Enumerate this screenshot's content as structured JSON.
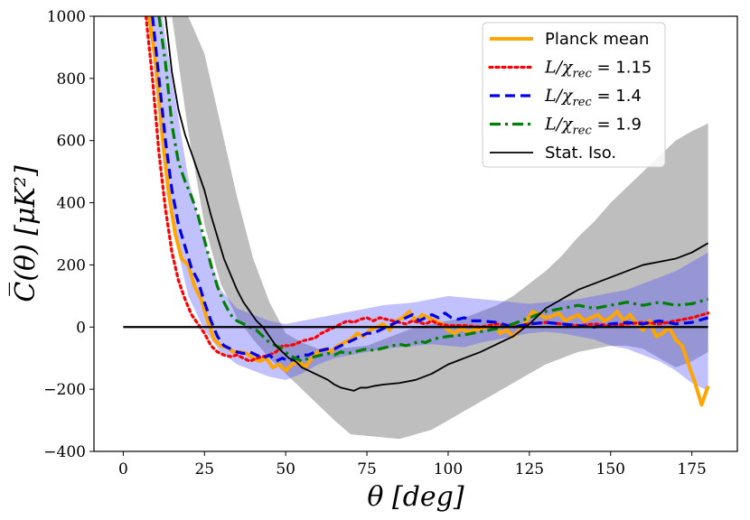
{
  "chart_data": {
    "type": "line",
    "title": "",
    "xlabel": "θ [deg]",
    "ylabel": "C̅(θ) [μK²]",
    "xlim": [
      -9,
      189
    ],
    "ylim": [
      -400,
      1000
    ],
    "x_ticks": [
      "0",
      "25",
      "50",
      "75",
      "100",
      "125",
      "150",
      "175"
    ],
    "x_tick_values": [
      0,
      25,
      50,
      75,
      100,
      125,
      150,
      175
    ],
    "y_ticks": [
      "−400",
      "−200",
      "0",
      "200",
      "400",
      "600",
      "800",
      "1000"
    ],
    "y_tick_values": [
      -400,
      -200,
      0,
      200,
      400,
      600,
      800,
      1000
    ],
    "legend_position": "top-right",
    "bands": [
      {
        "name": "Stat. Iso. band",
        "color": "#bebebe",
        "x": [
          10,
          15,
          20,
          25,
          30,
          35,
          40,
          45,
          50,
          55,
          60,
          65,
          70,
          75,
          80,
          85,
          90,
          95,
          100,
          105,
          110,
          115,
          120,
          125,
          130,
          135,
          140,
          145,
          150,
          155,
          160,
          165,
          170,
          175,
          180
        ],
        "lower": [
          1000,
          1000,
          630,
          330,
          140,
          30,
          -40,
          -100,
          -150,
          -200,
          -250,
          -300,
          -345,
          -350,
          -355,
          -360,
          -345,
          -330,
          -300,
          -270,
          -240,
          -210,
          -180,
          -150,
          -120,
          -100,
          -80,
          -70,
          -60,
          -60,
          -70,
          -100,
          -130,
          -110,
          -80
        ],
        "upper": [
          1000,
          1000,
          1000,
          880,
          650,
          420,
          220,
          80,
          -20,
          -50,
          -70,
          -70,
          -65,
          -60,
          -40,
          -20,
          0,
          10,
          20,
          30,
          50,
          70,
          100,
          140,
          180,
          230,
          290,
          340,
          400,
          450,
          500,
          550,
          600,
          630,
          655
        ]
      },
      {
        "name": "L/χrec = 1.4 band",
        "color": "#4d4dff",
        "opacity": 0.35,
        "x": [
          8,
          12,
          15,
          20,
          25,
          30,
          35,
          40,
          45,
          50,
          55,
          60,
          65,
          70,
          75,
          80,
          85,
          90,
          95,
          100,
          105,
          110,
          115,
          120,
          125,
          130,
          135,
          140,
          145,
          150,
          155,
          160,
          165,
          170,
          175,
          180
        ],
        "lower": [
          1000,
          560,
          330,
          100,
          -10,
          -80,
          -120,
          -140,
          -160,
          -170,
          -150,
          -120,
          -100,
          -90,
          -80,
          -70,
          -65,
          -60,
          -55,
          -60,
          -65,
          -50,
          -40,
          -30,
          -20,
          -15,
          -20,
          -30,
          -40,
          -60,
          -70,
          -90,
          -110,
          -140,
          -180,
          -205
        ],
        "upper": [
          1000,
          1000,
          800,
          480,
          270,
          120,
          60,
          40,
          20,
          10,
          20,
          30,
          40,
          50,
          60,
          70,
          75,
          80,
          90,
          100,
          95,
          90,
          85,
          80,
          75,
          80,
          85,
          90,
          100,
          110,
          120,
          140,
          160,
          180,
          210,
          240
        ]
      }
    ],
    "series": [
      {
        "name": "Planck mean",
        "label_text": "Planck mean",
        "color": "#ffa500",
        "style": "solid",
        "width": 4,
        "x": [
          8,
          10,
          12,
          14,
          16,
          18,
          20,
          22,
          24,
          26,
          28,
          30,
          32,
          34,
          36,
          38,
          40,
          42,
          44,
          46,
          48,
          50,
          52,
          54,
          56,
          58,
          60,
          62,
          64,
          66,
          68,
          70,
          72,
          74,
          76,
          78,
          80,
          82,
          84,
          86,
          88,
          90,
          92,
          94,
          96,
          98,
          100,
          102,
          104,
          106,
          108,
          110,
          112,
          114,
          116,
          118,
          120,
          122,
          124,
          126,
          128,
          130,
          132,
          134,
          136,
          138,
          140,
          142,
          144,
          146,
          148,
          150,
          152,
          154,
          156,
          158,
          160,
          162,
          164,
          166,
          168,
          170,
          172,
          174,
          176,
          178,
          180
        ],
        "y": [
          1000,
          850,
          620,
          430,
          300,
          220,
          200,
          130,
          90,
          20,
          -40,
          -60,
          -65,
          -80,
          -80,
          -85,
          -100,
          -110,
          -100,
          -130,
          -120,
          -140,
          -120,
          -110,
          -130,
          -100,
          -80,
          -70,
          -80,
          -60,
          -50,
          -40,
          -20,
          -30,
          -10,
          0,
          10,
          -10,
          20,
          30,
          50,
          20,
          40,
          30,
          20,
          10,
          -10,
          -20,
          -5,
          -15,
          -10,
          -5,
          0,
          10,
          -20,
          -10,
          -30,
          -10,
          20,
          50,
          40,
          30,
          35,
          45,
          20,
          30,
          40,
          20,
          30,
          40,
          20,
          30,
          50,
          20,
          40,
          10,
          -10,
          20,
          -30,
          -20,
          0,
          -40,
          -60,
          -120,
          -180,
          -250,
          -190
        ]
      },
      {
        "name": "L/χrec = 1.15",
        "label_text": "= 1.15",
        "color": "#ff0000",
        "style": "dotted",
        "width": 3.2,
        "x": [
          7,
          9,
          11,
          13,
          15,
          17,
          19,
          21,
          23,
          25,
          27,
          29,
          31,
          33,
          35,
          37,
          39,
          41,
          43,
          45,
          47,
          49,
          51,
          53,
          55,
          57,
          59,
          61,
          63,
          65,
          67,
          69,
          71,
          73,
          75,
          77,
          79,
          81,
          83,
          85,
          87,
          89,
          91,
          93,
          95,
          97,
          100,
          105,
          110,
          115,
          120,
          125,
          130,
          135,
          140,
          145,
          150,
          155,
          160,
          165,
          170,
          175,
          180
        ],
        "y": [
          1000,
          800,
          560,
          380,
          240,
          150,
          90,
          40,
          10,
          -20,
          -60,
          -80,
          -90,
          -95,
          -90,
          -100,
          -110,
          -100,
          -95,
          -90,
          -80,
          -60,
          -60,
          -55,
          -45,
          -40,
          -35,
          -20,
          -10,
          0,
          10,
          20,
          15,
          25,
          30,
          20,
          30,
          25,
          20,
          15,
          10,
          20,
          15,
          10,
          20,
          10,
          5,
          5,
          0,
          10,
          0,
          10,
          15,
          10,
          5,
          10,
          5,
          10,
          15,
          10,
          20,
          30,
          45
        ]
      },
      {
        "name": "L/χrec = 1.4",
        "label_text": "= 1.4",
        "color": "#0000ee",
        "style": "dashed",
        "width": 3.2,
        "x": [
          9,
          11,
          13,
          15,
          17,
          19,
          21,
          23,
          25,
          27,
          29,
          31,
          33,
          35,
          37,
          39,
          41,
          43,
          45,
          47,
          49,
          51,
          53,
          55,
          57,
          59,
          61,
          63,
          65,
          67,
          69,
          71,
          73,
          75,
          77,
          79,
          81,
          83,
          85,
          87,
          89,
          91,
          93,
          95,
          97,
          99,
          101,
          103,
          105,
          107,
          110,
          115,
          120,
          125,
          130,
          135,
          140,
          145,
          150,
          155,
          160,
          165,
          170,
          175,
          180
        ],
        "y": [
          1000,
          800,
          600,
          440,
          330,
          260,
          190,
          150,
          80,
          20,
          -30,
          -60,
          -70,
          -80,
          -85,
          -80,
          -90,
          -100,
          -90,
          -110,
          -100,
          -110,
          -100,
          -90,
          -90,
          -80,
          -75,
          -70,
          -70,
          -60,
          -50,
          -40,
          -30,
          -20,
          -20,
          -10,
          0,
          10,
          20,
          30,
          40,
          20,
          30,
          40,
          30,
          45,
          30,
          25,
          30,
          20,
          20,
          15,
          0,
          10,
          15,
          10,
          5,
          0,
          10,
          15,
          10,
          20,
          10,
          15,
          30
        ]
      },
      {
        "name": "L/χrec = 1.9",
        "label_text": "= 1.9",
        "color": "#008000",
        "style": "dashdot",
        "width": 3.2,
        "x": [
          11,
          13,
          15,
          17,
          19,
          21,
          23,
          25,
          27,
          29,
          31,
          33,
          35,
          37,
          39,
          41,
          43,
          45,
          47,
          49,
          51,
          53,
          55,
          57,
          59,
          61,
          63,
          65,
          67,
          69,
          71,
          73,
          75,
          77,
          79,
          81,
          83,
          85,
          87,
          89,
          91,
          93,
          95,
          97,
          100,
          105,
          110,
          115,
          120,
          125,
          130,
          135,
          140,
          145,
          150,
          155,
          160,
          165,
          170,
          175,
          180
        ],
        "y": [
          1000,
          850,
          650,
          530,
          470,
          420,
          360,
          280,
          200,
          130,
          80,
          40,
          20,
          10,
          0,
          -10,
          -30,
          -50,
          -60,
          -70,
          -90,
          -100,
          -110,
          -100,
          -95,
          -90,
          -85,
          -90,
          -80,
          -85,
          -80,
          -75,
          -70,
          -75,
          -70,
          -65,
          -60,
          -55,
          -60,
          -55,
          -45,
          -50,
          -40,
          -35,
          -30,
          -25,
          -15,
          -5,
          10,
          30,
          50,
          60,
          70,
          60,
          70,
          80,
          70,
          80,
          70,
          75,
          90
        ]
      },
      {
        "name": "Stat. Iso.",
        "label_text": "Stat. Iso.",
        "color": "#000000",
        "style": "solid",
        "width": 1.8,
        "x": [
          13,
          15,
          17,
          19,
          21,
          23,
          25,
          27,
          29,
          31,
          33,
          35,
          37,
          39,
          41,
          43,
          45,
          47,
          49,
          51,
          53,
          55,
          57,
          59,
          61,
          63,
          65,
          67,
          69,
          71,
          73,
          75,
          77,
          80,
          85,
          90,
          95,
          100,
          105,
          110,
          115,
          120,
          125,
          130,
          135,
          140,
          145,
          150,
          155,
          160,
          165,
          170,
          175,
          180
        ],
        "y": [
          1000,
          820,
          700,
          620,
          560,
          500,
          440,
          360,
          290,
          220,
          170,
          120,
          80,
          50,
          20,
          0,
          -30,
          -60,
          -80,
          -100,
          -110,
          -130,
          -140,
          -150,
          -160,
          -170,
          -185,
          -195,
          -200,
          -205,
          -195,
          -195,
          -190,
          -185,
          -180,
          -170,
          -150,
          -120,
          -100,
          -80,
          -55,
          -30,
          10,
          60,
          90,
          120,
          140,
          160,
          180,
          200,
          210,
          220,
          240,
          270
        ]
      }
    ],
    "reference_line": {
      "name": "zero line",
      "y": 0,
      "x_from": 0,
      "x_to": 180,
      "color": "#000000"
    }
  }
}
